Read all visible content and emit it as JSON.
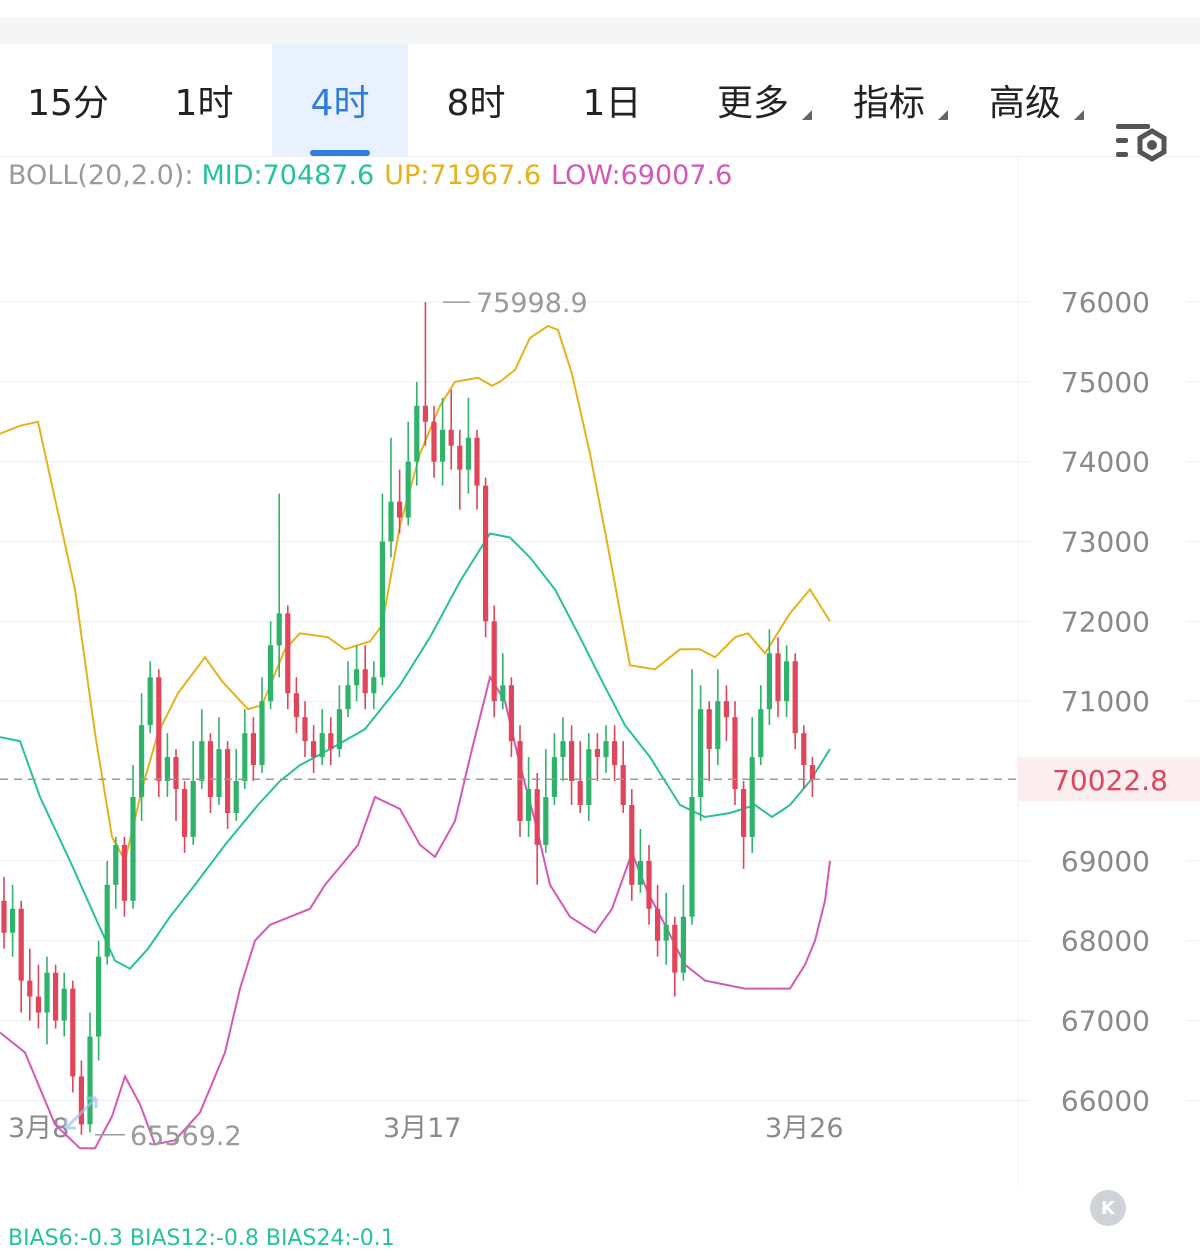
{
  "tabs": [
    {
      "label": "15分",
      "active": false,
      "dropdown": false
    },
    {
      "label": "1时",
      "active": false,
      "dropdown": false
    },
    {
      "label": "4时",
      "active": true,
      "dropdown": false
    },
    {
      "label": "8时",
      "active": false,
      "dropdown": false
    },
    {
      "label": "1日",
      "active": false,
      "dropdown": false
    },
    {
      "label": "更多",
      "active": false,
      "dropdown": true
    },
    {
      "label": "指标",
      "active": false,
      "dropdown": true
    },
    {
      "label": "高级",
      "active": false,
      "dropdown": true
    }
  ],
  "settings_icon": "chart-settings-icon",
  "indicator": {
    "label": "BOLL(20,2.0):",
    "mid": "MID:70487.6",
    "up": "UP:71967.6",
    "low": "LOW:69007.6"
  },
  "bottom_indicator": "BIAS6:-0.3  BIAS12:-0.8  BIAS24:-0.1",
  "colors": {
    "accent": "#2f7de1",
    "up_candle": "#2fb36a",
    "down_candle": "#e0455a",
    "boll_mid": "#26c1a0",
    "boll_up": "#e6b21c",
    "boll_low": "#d458b8"
  },
  "chart_data": {
    "type": "candlestick",
    "y_ticks": [
      76000,
      75000,
      74000,
      73000,
      72000,
      71000,
      69000,
      68000,
      67000,
      66000
    ],
    "y_tick_labels": [
      "76000",
      "75000",
      "74000",
      "73000",
      "72000",
      "71000",
      "69000",
      "68000",
      "67000",
      "66000"
    ],
    "ylim": [
      65000,
      77000
    ],
    "x_tick_labels": [
      "3月8",
      "3月17",
      "3月26"
    ],
    "current_price": 70022.8,
    "current_price_label": "70022.8",
    "max_marker": {
      "value": 75998.9,
      "label": "75998.9"
    },
    "min_marker": {
      "value": 65569.2,
      "label": "65569.2"
    },
    "grid": true,
    "candles": [
      [
        68500,
        68100,
        68800,
        67900
      ],
      [
        68100,
        68400,
        68700,
        67800
      ],
      [
        68400,
        67500,
        68500,
        67100
      ],
      [
        67500,
        67300,
        67900,
        67000
      ],
      [
        67300,
        67100,
        67700,
        66900
      ],
      [
        67100,
        67600,
        67800,
        66700
      ],
      [
        67600,
        67000,
        67700,
        66900
      ],
      [
        67000,
        67400,
        67600,
        66800
      ],
      [
        67400,
        66300,
        67500,
        66100
      ],
      [
        66300,
        65700,
        66500,
        65569.2
      ],
      [
        65700,
        66800,
        67100,
        65600
      ],
      [
        66800,
        67800,
        68000,
        66500
      ],
      [
        67800,
        68700,
        69000,
        67700
      ],
      [
        68700,
        69200,
        69300,
        68400
      ],
      [
        69200,
        68500,
        69300,
        68300
      ],
      [
        68500,
        69800,
        70200,
        68400
      ],
      [
        69800,
        70700,
        71100,
        69500
      ],
      [
        70700,
        71300,
        71500,
        70600
      ],
      [
        71300,
        70000,
        71400,
        69800
      ],
      [
        70000,
        70300,
        70600,
        69800
      ],
      [
        70300,
        69900,
        70400,
        69500
      ],
      [
        69900,
        69300,
        70000,
        69100
      ],
      [
        69300,
        70000,
        70500,
        69200
      ],
      [
        70000,
        70500,
        70900,
        69900
      ],
      [
        70500,
        69800,
        70600,
        69600
      ],
      [
        69800,
        70400,
        70800,
        69700
      ],
      [
        70400,
        69600,
        70500,
        69400
      ],
      [
        69600,
        70000,
        70400,
        69500
      ],
      [
        70000,
        70600,
        70900,
        69900
      ],
      [
        70600,
        70200,
        70800,
        70000
      ],
      [
        70200,
        71000,
        71300,
        70100
      ],
      [
        71000,
        71700,
        72000,
        70900
      ],
      [
        71700,
        72100,
        73600,
        71300
      ],
      [
        72100,
        71100,
        72200,
        70900
      ],
      [
        71100,
        70800,
        71300,
        70600
      ],
      [
        70800,
        70500,
        71000,
        70300
      ],
      [
        70500,
        70300,
        70700,
        70100
      ],
      [
        70300,
        70600,
        70900,
        70200
      ],
      [
        70600,
        70400,
        70800,
        70200
      ],
      [
        70400,
        70900,
        71200,
        70300
      ],
      [
        70900,
        71200,
        71500,
        70800
      ],
      [
        71200,
        71400,
        71700,
        71000
      ],
      [
        71400,
        71100,
        71700,
        70900
      ],
      [
        71100,
        71300,
        71500,
        70900
      ],
      [
        71300,
        73000,
        73600,
        71200
      ],
      [
        73000,
        73500,
        74300,
        72800
      ],
      [
        73500,
        73300,
        73900,
        73100
      ],
      [
        73300,
        74000,
        74500,
        73200
      ],
      [
        74000,
        74700,
        75000,
        73700
      ],
      [
        74700,
        74500,
        75998.9,
        74200
      ],
      [
        74500,
        74000,
        74700,
        73800
      ],
      [
        74000,
        74400,
        74800,
        73700
      ],
      [
        74400,
        74200,
        74900,
        73900
      ],
      [
        74200,
        73900,
        74400,
        73400
      ],
      [
        73900,
        74300,
        74800,
        73600
      ],
      [
        74300,
        73700,
        74400,
        73400
      ],
      [
        73700,
        72000,
        73800,
        71800
      ],
      [
        72000,
        71000,
        72200,
        70800
      ],
      [
        71000,
        71200,
        71600,
        70900
      ],
      [
        71200,
        70500,
        71300,
        70300
      ],
      [
        70500,
        69500,
        70700,
        69300
      ],
      [
        69500,
        69900,
        70300,
        69300
      ],
      [
        69900,
        69200,
        70100,
        68700
      ],
      [
        69200,
        69800,
        70400,
        69100
      ],
      [
        69800,
        70300,
        70600,
        69700
      ],
      [
        70300,
        70500,
        70800,
        70000
      ],
      [
        70500,
        70000,
        70700,
        69700
      ],
      [
        70000,
        69700,
        70500,
        69600
      ],
      [
        69700,
        70400,
        70600,
        69500
      ],
      [
        70400,
        70300,
        70600,
        70000
      ],
      [
        70300,
        70500,
        70700,
        70100
      ],
      [
        70500,
        70200,
        70700,
        70000
      ],
      [
        70200,
        69700,
        70500,
        69600
      ],
      [
        69700,
        68700,
        69900,
        68500
      ],
      [
        68700,
        69000,
        69400,
        68600
      ],
      [
        69000,
        68400,
        69200,
        68200
      ],
      [
        68400,
        68000,
        68700,
        67800
      ],
      [
        68000,
        68200,
        68600,
        67700
      ],
      [
        68200,
        67600,
        68300,
        67300
      ],
      [
        67600,
        68300,
        68700,
        67500
      ],
      [
        68300,
        69800,
        71400,
        68200
      ],
      [
        69800,
        70900,
        71200,
        69500
      ],
      [
        70900,
        70400,
        71000,
        70000
      ],
      [
        70400,
        71000,
        71400,
        70200
      ],
      [
        71000,
        70800,
        71200,
        70500
      ],
      [
        70800,
        69900,
        71000,
        69700
      ],
      [
        69900,
        69300,
        70000,
        68900
      ],
      [
        69300,
        70300,
        70800,
        69100
      ],
      [
        70300,
        70900,
        71200,
        70200
      ],
      [
        70900,
        71600,
        71900,
        70700
      ],
      [
        71600,
        71000,
        71800,
        70800
      ],
      [
        71000,
        71500,
        71700,
        70800
      ],
      [
        71500,
        70600,
        71600,
        70400
      ],
      [
        70600,
        70200,
        70700,
        69900
      ],
      [
        70200,
        70022.8,
        70300,
        69800
      ]
    ],
    "boll_up": [
      [
        0,
        74350
      ],
      [
        20,
        74450
      ],
      [
        38,
        74500
      ],
      [
        75,
        72400
      ],
      [
        95,
        70600
      ],
      [
        112,
        69300
      ],
      [
        125,
        69000
      ],
      [
        142,
        69900
      ],
      [
        158,
        70600
      ],
      [
        178,
        71100
      ],
      [
        205,
        71550
      ],
      [
        222,
        71250
      ],
      [
        248,
        70900
      ],
      [
        262,
        70950
      ],
      [
        285,
        71650
      ],
      [
        300,
        71850
      ],
      [
        328,
        71800
      ],
      [
        345,
        71650
      ],
      [
        370,
        71750
      ],
      [
        382,
        71950
      ],
      [
        400,
        73200
      ],
      [
        420,
        74100
      ],
      [
        440,
        74700
      ],
      [
        455,
        75000
      ],
      [
        478,
        75050
      ],
      [
        492,
        74950
      ],
      [
        500,
        75000
      ],
      [
        515,
        75150
      ],
      [
        530,
        75550
      ],
      [
        548,
        75700
      ],
      [
        558,
        75650
      ],
      [
        572,
        75100
      ],
      [
        590,
        74100
      ],
      [
        610,
        72800
      ],
      [
        630,
        71450
      ],
      [
        655,
        71400
      ],
      [
        680,
        71650
      ],
      [
        700,
        71650
      ],
      [
        715,
        71550
      ],
      [
        735,
        71800
      ],
      [
        748,
        71850
      ],
      [
        765,
        71600
      ],
      [
        790,
        72100
      ],
      [
        810,
        72400
      ],
      [
        830,
        72000
      ]
    ],
    "boll_mid": [
      [
        0,
        70550
      ],
      [
        20,
        70500
      ],
      [
        40,
        69800
      ],
      [
        70,
        69000
      ],
      [
        95,
        68300
      ],
      [
        115,
        67750
      ],
      [
        130,
        67650
      ],
      [
        148,
        67900
      ],
      [
        170,
        68300
      ],
      [
        195,
        68700
      ],
      [
        225,
        69200
      ],
      [
        258,
        69700
      ],
      [
        280,
        70000
      ],
      [
        300,
        70200
      ],
      [
        330,
        70400
      ],
      [
        365,
        70650
      ],
      [
        400,
        71200
      ],
      [
        430,
        71800
      ],
      [
        460,
        72500
      ],
      [
        490,
        73100
      ],
      [
        510,
        73050
      ],
      [
        530,
        72800
      ],
      [
        555,
        72400
      ],
      [
        580,
        71800
      ],
      [
        600,
        71300
      ],
      [
        625,
        70700
      ],
      [
        650,
        70300
      ],
      [
        680,
        69700
      ],
      [
        705,
        69550
      ],
      [
        730,
        69600
      ],
      [
        755,
        69700
      ],
      [
        772,
        69550
      ],
      [
        790,
        69700
      ],
      [
        810,
        70000
      ],
      [
        830,
        70400
      ]
    ],
    "boll_low": [
      [
        0,
        66850
      ],
      [
        25,
        66600
      ],
      [
        55,
        65700
      ],
      [
        80,
        65400
      ],
      [
        95,
        65400
      ],
      [
        112,
        65800
      ],
      [
        125,
        66300
      ],
      [
        140,
        65950
      ],
      [
        155,
        65450
      ],
      [
        175,
        65500
      ],
      [
        200,
        65850
      ],
      [
        225,
        66600
      ],
      [
        240,
        67400
      ],
      [
        255,
        68000
      ],
      [
        270,
        68200
      ],
      [
        290,
        68300
      ],
      [
        310,
        68400
      ],
      [
        325,
        68700
      ],
      [
        345,
        69000
      ],
      [
        358,
        69200
      ],
      [
        375,
        69800
      ],
      [
        400,
        69650
      ],
      [
        420,
        69200
      ],
      [
        435,
        69050
      ],
      [
        455,
        69500
      ],
      [
        472,
        70400
      ],
      [
        490,
        71300
      ],
      [
        505,
        71000
      ],
      [
        520,
        70200
      ],
      [
        535,
        69500
      ],
      [
        550,
        68700
      ],
      [
        570,
        68300
      ],
      [
        595,
        68100
      ],
      [
        612,
        68400
      ],
      [
        632,
        69100
      ],
      [
        648,
        68600
      ],
      [
        665,
        68200
      ],
      [
        685,
        67700
      ],
      [
        705,
        67500
      ],
      [
        725,
        67450
      ],
      [
        745,
        67400
      ],
      [
        770,
        67400
      ],
      [
        790,
        67400
      ],
      [
        805,
        67700
      ],
      [
        815,
        68000
      ],
      [
        825,
        68500
      ],
      [
        830,
        69000
      ]
    ]
  }
}
